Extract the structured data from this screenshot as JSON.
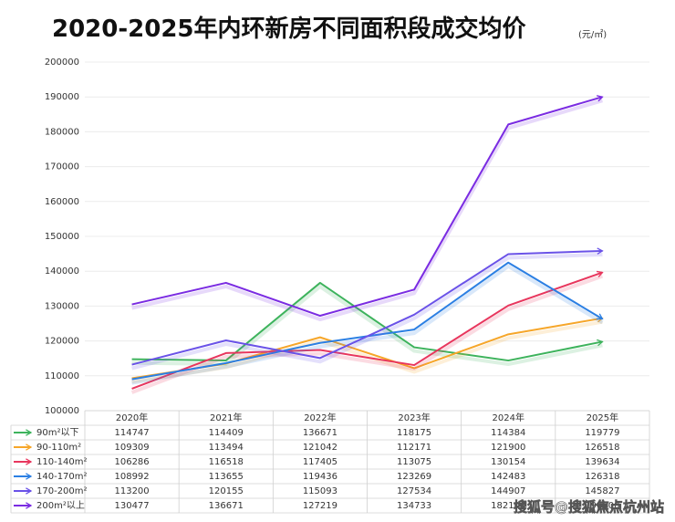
{
  "chart_data": {
    "type": "line",
    "title": "2020-2025年内环新房不同面积段成交均价",
    "subtitle": "(元/㎡)",
    "categories": [
      "2020年",
      "2021年",
      "2022年",
      "2023年",
      "2024年",
      "2025年"
    ],
    "series": [
      {
        "name": "90m²以下",
        "color": "#3db35c",
        "values": [
          114747,
          114409,
          136671,
          118175,
          114384,
          119779
        ]
      },
      {
        "name": "90-110m²",
        "color": "#f6a629",
        "values": [
          109309,
          113494,
          121042,
          112171,
          121900,
          126518
        ]
      },
      {
        "name": "110-140m²",
        "color": "#e8365d",
        "values": [
          106286,
          116518,
          117405,
          113075,
          130154,
          139634
        ]
      },
      {
        "name": "140-170m²",
        "color": "#2b7fe3",
        "values": [
          108992,
          113655,
          119436,
          123269,
          142483,
          126318
        ]
      },
      {
        "name": "170-200m²",
        "color": "#6a52e8",
        "values": [
          113200,
          120155,
          115093,
          127534,
          144907,
          145827
        ]
      },
      {
        "name": "200m²以上",
        "color": "#7a2be2",
        "values": [
          130477,
          136671,
          127219,
          134733,
          182100,
          190000
        ]
      }
    ],
    "ylim": [
      100000,
      200000
    ],
    "yticks": [
      100000,
      110000,
      120000,
      130000,
      140000,
      150000,
      160000,
      170000,
      180000,
      190000,
      200000
    ],
    "grid": true
  },
  "watermark": "搜狐号@搜狐焦点杭州站"
}
